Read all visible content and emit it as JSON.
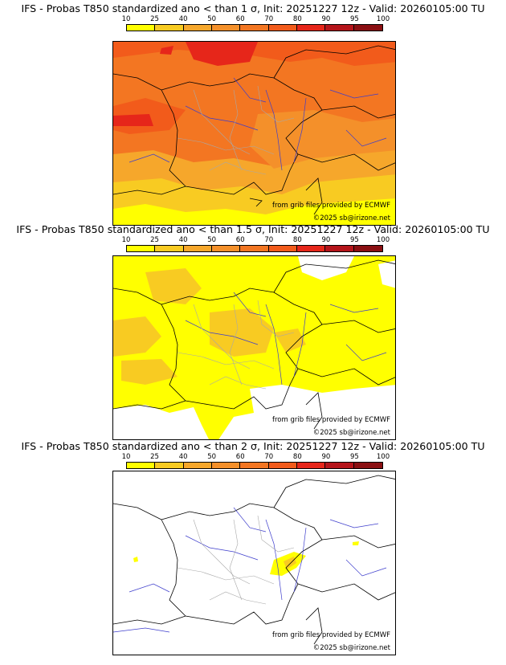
{
  "palette": {
    "c10": "#ffff00",
    "c25": "#f8cb22",
    "c40": "#f6a72b",
    "c50": "#f4902a",
    "c60": "#f37622",
    "c70": "#f25b1b",
    "c80": "#e6261a",
    "c90": "#b5141a",
    "c95": "#8a0f12",
    "c100": "#5a0a08",
    "country": "#000000",
    "river": "#3d3dcc",
    "region": "#a8a8a8",
    "background": "#ffffff"
  },
  "scale_labels": [
    "10",
    "25",
    "40",
    "50",
    "60",
    "70",
    "80",
    "90",
    "95",
    "100"
  ],
  "credits": {
    "source": "from grib files provided by ECMWF",
    "copyright": "©2025 sb@irizone.net"
  },
  "panels": [
    {
      "title": "IFS - Probas T850  standardized ano < than 1 σ, Init: 20251227 12z - Valid: 20260105:00 TU",
      "sigma": 1,
      "dominant_probability": 60
    },
    {
      "title": "IFS - Probas T850  standardized ano < than 1.5 σ, Init: 20251227 12z - Valid: 20260105:00 TU",
      "sigma": 1.5,
      "dominant_probability": 10
    },
    {
      "title": "IFS - Probas T850  standardized ano < than 2 σ, Init: 20251227 12z - Valid: 20260105:00 TU",
      "sigma": 2,
      "dominant_probability": 0
    }
  ]
}
